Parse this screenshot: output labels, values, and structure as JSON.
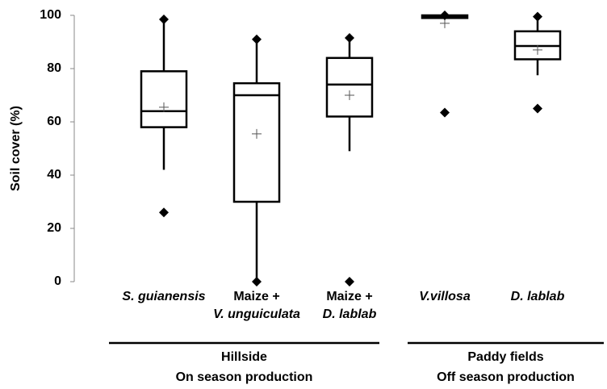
{
  "chart_data": {
    "type": "box",
    "ylabel": "Soil cover (%)",
    "ylim": [
      0,
      100
    ],
    "yticks": [
      0,
      20,
      40,
      60,
      80,
      100
    ],
    "categories": [
      [
        "S. guianensis"
      ],
      [
        "Maize +",
        "V. unguiculata"
      ],
      [
        "Maize +",
        "D. lablab"
      ],
      [
        "V.villosa"
      ],
      [
        "D. lablab"
      ]
    ],
    "boxes": [
      {
        "min": 26,
        "whisker_low": 42,
        "q1": 58,
        "median": 64,
        "q3": 79,
        "whisker_high": 98.5,
        "max": 98.5,
        "mean": 65.5
      },
      {
        "min": 0,
        "whisker_low": 0,
        "q1": 30,
        "median": 70,
        "q3": 74.5,
        "whisker_high": 91,
        "max": 91,
        "mean": 55.5
      },
      {
        "min": 0,
        "whisker_low": 49,
        "q1": 62,
        "median": 74,
        "q3": 84,
        "whisker_high": 91.5,
        "max": 91.5,
        "mean": 70
      },
      {
        "min": 63.5,
        "whisker_low": 99,
        "q1": 99,
        "median": 99.5,
        "q3": 100,
        "whisker_high": 100,
        "max": 100,
        "mean": 97
      },
      {
        "min": 65,
        "whisker_low": 77.5,
        "q1": 83.5,
        "median": 88.5,
        "q3": 94,
        "whisker_high": 99.5,
        "max": 99.5,
        "mean": 87
      }
    ],
    "groups": [
      [
        "Hillside",
        "On season production"
      ],
      [
        "Paddy fields",
        "Off season production"
      ]
    ],
    "color": "#000000"
  }
}
